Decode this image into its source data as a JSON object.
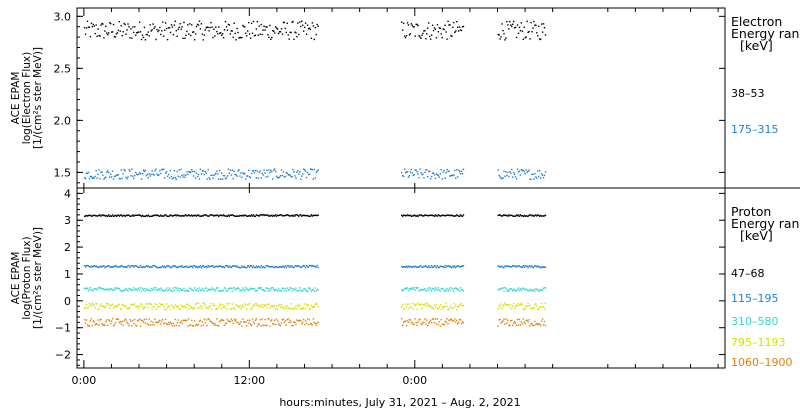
{
  "xlabel": "hours:minutes, July 31, 2021 – Aug. 2, 2021",
  "x_ticks": [
    "0:00",
    "12:00",
    "0:00"
  ],
  "chart_data": [
    {
      "type": "scatter",
      "name": "electron-panel",
      "ylabel": [
        "ACE EPAM",
        "log(Electron Flux)",
        "[1/(cm²s ster MeV)]"
      ],
      "ylim": [
        1.35,
        3.08
      ],
      "y_ticks": [
        "1.5",
        "2.0",
        "2.5",
        "3.0"
      ],
      "y_tick_values": [
        1.5,
        2.0,
        2.5,
        3.0
      ],
      "legend_title": [
        "Electron",
        "Energy range",
        "[keV]"
      ],
      "xlim_hours": [
        -0.5,
        46.5
      ],
      "data_segments_hours": [
        [
          0,
          17
        ],
        [
          23,
          27.5
        ],
        [
          30,
          33.5
        ]
      ],
      "series": [
        {
          "name": "38–53",
          "color": "#000000",
          "mean": 2.87,
          "spread": 0.09
        },
        {
          "name": "175–315",
          "color": "#1f7fd0",
          "mean": 1.49,
          "spread": 0.05
        }
      ]
    },
    {
      "type": "scatter",
      "name": "proton-panel",
      "ylabel": [
        "ACE EPAM",
        "log(Proton Flux)",
        "[1/(cm²s ster MeV)]"
      ],
      "ylim": [
        -2.5,
        4.2
      ],
      "y_ticks": [
        "4",
        "3",
        "2",
        "1",
        "0",
        "−1",
        "−2"
      ],
      "y_tick_values": [
        4,
        3,
        2,
        1,
        0,
        -1,
        -2
      ],
      "legend_title": [
        "Proton",
        "Energy range",
        "[keV]"
      ],
      "xlim_hours": [
        -0.5,
        46.5
      ],
      "data_segments_hours": [
        [
          0,
          17
        ],
        [
          23,
          27.5
        ],
        [
          30,
          33.5
        ]
      ],
      "series": [
        {
          "name": "47–68",
          "color": "#000000",
          "mean": 3.2,
          "spread": 0.03
        },
        {
          "name": "115–195",
          "color": "#1f7fd0",
          "mean": 1.3,
          "spread": 0.04
        },
        {
          "name": "310–580",
          "color": "#30d8d0",
          "mean": 0.45,
          "spread": 0.07
        },
        {
          "name": "795–1193",
          "color": "#d8e000",
          "mean": -0.18,
          "spread": 0.12
        },
        {
          "name": "1060–1900",
          "color": "#e08010",
          "mean": -0.78,
          "spread": 0.14
        }
      ]
    }
  ]
}
